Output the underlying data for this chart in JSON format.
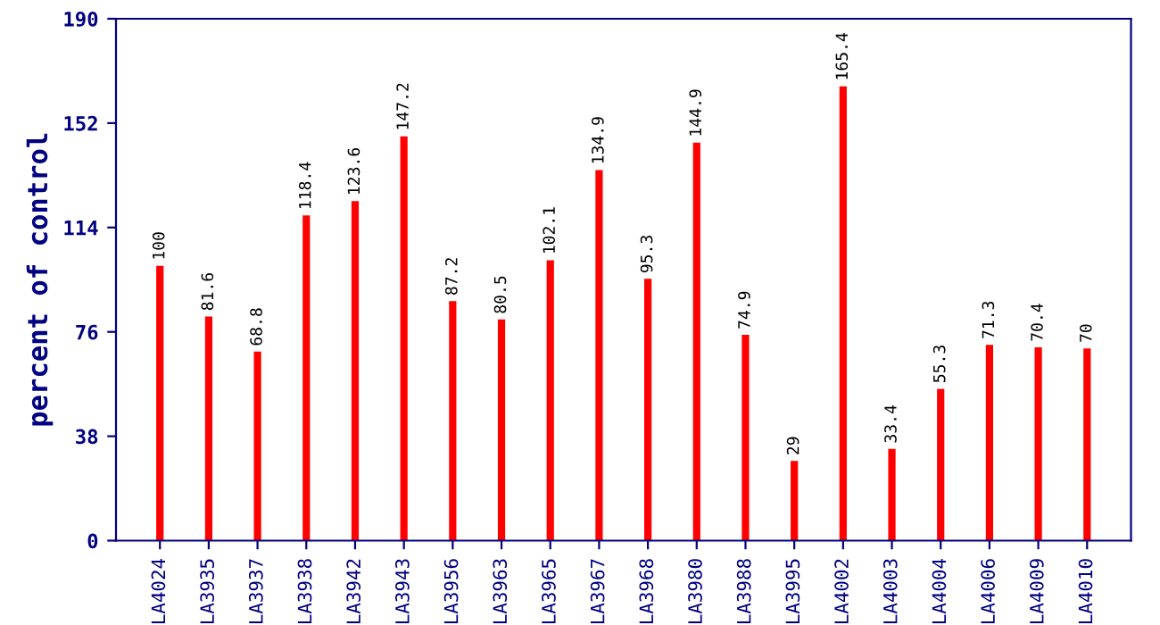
{
  "chart_data": {
    "type": "bar",
    "ylabel": "percent of control",
    "categories": [
      "LA4024",
      "LA3935",
      "LA3937",
      "LA3938",
      "LA3942",
      "LA3943",
      "LA3956",
      "LA3963",
      "LA3965",
      "LA3967",
      "LA3968",
      "LA3980",
      "LA3988",
      "LA3995",
      "LA4002",
      "LA4003",
      "LA4004",
      "LA4006",
      "LA4009",
      "LA4010"
    ],
    "values": [
      100,
      81.6,
      68.8,
      118.4,
      123.6,
      147.2,
      87.2,
      80.5,
      102.1,
      134.9,
      95.3,
      144.9,
      74.9,
      29,
      165.4,
      33.4,
      55.3,
      71.3,
      70.4,
      70
    ],
    "color": "#ff0000",
    "ylim": [
      0,
      190
    ],
    "yticks": [
      0,
      38,
      76,
      114,
      152,
      190
    ],
    "data_labels": true,
    "grid": false
  }
}
